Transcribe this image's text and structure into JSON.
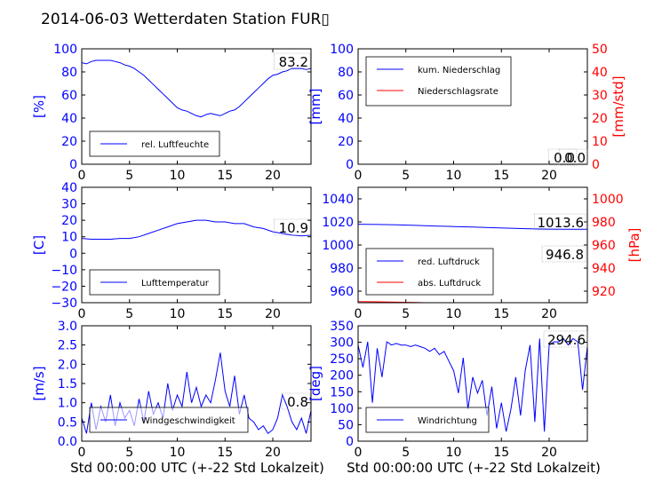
{
  "figure": {
    "title": "2014-06-03 Wetterdaten Station FUR▯",
    "xlabel": "Std 00:00:00 UTC (+-22 Std Lokalzeit)"
  },
  "colors": {
    "blue": "#0000ff",
    "red": "#ff0000",
    "text": "#000000",
    "axis": "#000000"
  },
  "chart_data": [
    {
      "id": "humidity",
      "type": "line",
      "title": "",
      "xlabel": "",
      "ylabel": "[%]",
      "xlim": [
        0,
        24
      ],
      "ylim": [
        0,
        100
      ],
      "xticks": [
        "0",
        "5",
        "10",
        "15",
        "20"
      ],
      "yticks": [
        "0",
        "20",
        "40",
        "60",
        "80",
        "100"
      ],
      "legend_position": "lower-left",
      "series": [
        {
          "name": "rel. Luftfeuchte",
          "color": "#0000ff",
          "x": [
            0,
            0.5,
            1,
            1.5,
            2,
            2.5,
            3,
            3.5,
            4,
            4.5,
            5,
            5.5,
            6,
            6.5,
            7,
            7.5,
            8,
            8.5,
            9,
            9.5,
            10,
            10.5,
            11,
            11.5,
            12,
            12.5,
            13,
            13.5,
            14,
            14.5,
            15,
            15.5,
            16,
            16.5,
            17,
            17.5,
            18,
            18.5,
            19,
            19.5,
            20,
            20.5,
            21,
            21.5,
            22,
            22.5,
            23,
            23.5,
            24
          ],
          "y": [
            88,
            87,
            89,
            90,
            90,
            90,
            90,
            89,
            88,
            86,
            85,
            83,
            80,
            77,
            73,
            69,
            65,
            61,
            57,
            53,
            49,
            47,
            46,
            44,
            42,
            41,
            43,
            44,
            43,
            42,
            44,
            46,
            47,
            50,
            54,
            58,
            62,
            66,
            70,
            74,
            77,
            78,
            80,
            81,
            83,
            83,
            83,
            82,
            83
          ]
        }
      ],
      "annotation": "83.2"
    },
    {
      "id": "precip",
      "type": "line",
      "title": "",
      "xlabel": "",
      "ylabel": "[mm]",
      "ylabel_right": "[mm/std]",
      "xlim": [
        0,
        24
      ],
      "ylim": [
        0,
        100
      ],
      "ylim_right": [
        0,
        50
      ],
      "xticks": [
        "0",
        "5",
        "10",
        "15",
        "20"
      ],
      "yticks": [
        "0",
        "20",
        "40",
        "60",
        "80",
        "100"
      ],
      "yticks_right": [
        "0",
        "10",
        "20",
        "30",
        "40",
        "50"
      ],
      "legend_position": "upper-left",
      "series": [
        {
          "name": "kum. Niederschlag",
          "color": "#0000ff",
          "x": [
            0,
            24
          ],
          "y": [
            0,
            0
          ]
        },
        {
          "name": "Niederschlagsrate",
          "color": "#ff0000",
          "x": [
            0,
            24
          ],
          "y": [
            0,
            0
          ]
        }
      ],
      "annotation": "0.0",
      "annotation2": "0.0"
    },
    {
      "id": "temperature",
      "type": "line",
      "title": "",
      "xlabel": "",
      "ylabel": "[C]",
      "xlim": [
        0,
        24
      ],
      "ylim": [
        -30,
        40
      ],
      "xticks": [
        "0",
        "5",
        "10",
        "15",
        "20"
      ],
      "yticks": [
        "−30",
        "−20",
        "−10",
        "0",
        "10",
        "20",
        "30",
        "40"
      ],
      "legend_position": "lower-left",
      "series": [
        {
          "name": "Lufttemperatur",
          "color": "#0000ff",
          "x": [
            0,
            1,
            2,
            3,
            4,
            5,
            6,
            7,
            8,
            9,
            10,
            11,
            12,
            13,
            14,
            15,
            16,
            17,
            18,
            19,
            20,
            21,
            22,
            23,
            24
          ],
          "y": [
            9,
            8.5,
            8.5,
            8.5,
            9,
            9,
            10,
            12,
            14,
            16,
            18,
            19,
            20,
            20,
            19,
            19,
            18,
            18,
            16,
            15,
            13,
            12,
            11,
            10.5,
            10.9
          ]
        }
      ],
      "annotation": "10.9"
    },
    {
      "id": "pressure",
      "type": "line",
      "title": "",
      "xlabel": "",
      "ylabel": "",
      "ylabel_right": "[hPa]",
      "xlim": [
        0,
        24
      ],
      "ylim": [
        950,
        1050
      ],
      "ylim_right": [
        910,
        1010
      ],
      "xticks": [
        "0",
        "5",
        "10",
        "15",
        "20"
      ],
      "yticks": [
        "960",
        "980",
        "1000",
        "1020",
        "1040"
      ],
      "yticks_right": [
        "920",
        "940",
        "960",
        "980",
        "1000"
      ],
      "legend_position": "lower-left",
      "series": [
        {
          "name": "red. Luftdruck",
          "color": "#0000ff",
          "x": [
            0,
            2,
            4,
            6,
            8,
            10,
            12,
            14,
            16,
            18,
            20,
            22,
            24
          ],
          "y": [
            1018,
            1017.8,
            1017.5,
            1017,
            1016.5,
            1016,
            1015.5,
            1015,
            1014.5,
            1014,
            1013.8,
            1013.6,
            1013.6
          ]
        },
        {
          "name": "abs. Luftdruck",
          "color": "#ff0000",
          "x": [
            0,
            2,
            4,
            6,
            8,
            10,
            12,
            14,
            16,
            18,
            20,
            22,
            24
          ],
          "y": [
            951,
            950.8,
            950.5,
            950.2,
            949.8,
            949.4,
            949,
            948.6,
            948.2,
            947.8,
            947.4,
            947,
            946.8
          ]
        }
      ],
      "annotation": "1013.6",
      "annotation2": "946.8"
    },
    {
      "id": "windspeed",
      "type": "line",
      "title": "",
      "xlabel": "Std 00:00:00 UTC (+-22 Std Lokalzeit)",
      "ylabel": "[m/s]",
      "xlim": [
        0,
        24
      ],
      "ylim": [
        0,
        3
      ],
      "xticks": [
        "0",
        "5",
        "10",
        "15",
        "20"
      ],
      "yticks": [
        "0.0",
        "0.5",
        "1.0",
        "1.5",
        "2.0",
        "2.5",
        "3.0"
      ],
      "legend_position": "lower-center",
      "series": [
        {
          "name": "Windgeschwindigkeit",
          "color": "#0000ff",
          "x": [
            0,
            0.5,
            1,
            1.5,
            2,
            2.5,
            3,
            3.5,
            4,
            4.5,
            5,
            5.5,
            6,
            6.5,
            7,
            7.5,
            8,
            8.5,
            9,
            9.5,
            10,
            10.5,
            11,
            11.5,
            12,
            12.5,
            13,
            13.5,
            14,
            14.5,
            15,
            15.5,
            16,
            16.5,
            17,
            17.5,
            18,
            18.5,
            19,
            19.5,
            20,
            20.5,
            21,
            21.5,
            22,
            22.5,
            23,
            23.5,
            24
          ],
          "y": [
            0.6,
            0.2,
            1.0,
            0.3,
            0.9,
            0.5,
            1.2,
            0.4,
            1.0,
            0.6,
            0.8,
            0.4,
            1.1,
            0.5,
            1.3,
            0.7,
            1.0,
            0.6,
            1.5,
            0.8,
            1.2,
            0.9,
            1.8,
            1.0,
            1.4,
            0.9,
            1.2,
            1.0,
            1.6,
            2.3,
            1.3,
            0.9,
            1.7,
            0.7,
            1.2,
            0.6,
            0.5,
            0.3,
            0.4,
            0.2,
            0.3,
            0.6,
            1.2,
            0.9,
            0.5,
            0.3,
            0.6,
            0.2,
            0.8
          ]
        }
      ],
      "annotation": "0.8"
    },
    {
      "id": "winddir",
      "type": "line",
      "title": "",
      "xlabel": "Std 00:00:00 UTC (+-22 Std Lokalzeit)",
      "ylabel": "[deg]",
      "xlim": [
        0,
        24
      ],
      "ylim": [
        0,
        360
      ],
      "xticks": [
        "0",
        "5",
        "10",
        "15",
        "20"
      ],
      "yticks": [
        "0",
        "50",
        "100",
        "150",
        "200",
        "250",
        "300",
        "350"
      ],
      "legend_position": "lower-left",
      "series": [
        {
          "name": "Windrichtung",
          "color": "#0000ff",
          "x": [
            0,
            0.5,
            1,
            1.5,
            2,
            2.5,
            3,
            3.5,
            4,
            4.5,
            5,
            5.5,
            6,
            6.5,
            7,
            7.5,
            8,
            8.5,
            9,
            9.5,
            10,
            10.5,
            11,
            11.5,
            12,
            12.5,
            13,
            13.5,
            14,
            14.5,
            15,
            15.5,
            16,
            16.5,
            17,
            17.5,
            18,
            18.5,
            19,
            19.5,
            20,
            20.5,
            21,
            21.5,
            22,
            22.5,
            23,
            23.5,
            24
          ],
          "y": [
            300,
            230,
            310,
            120,
            290,
            200,
            310,
            300,
            305,
            300,
            300,
            295,
            300,
            295,
            290,
            280,
            290,
            270,
            280,
            250,
            220,
            150,
            260,
            100,
            200,
            150,
            190,
            80,
            170,
            40,
            120,
            30,
            100,
            200,
            80,
            220,
            300,
            60,
            320,
            30,
            300,
            310,
            310,
            320,
            300,
            320,
            310,
            160,
            295
          ]
        }
      ],
      "annotation": "294.6"
    }
  ]
}
